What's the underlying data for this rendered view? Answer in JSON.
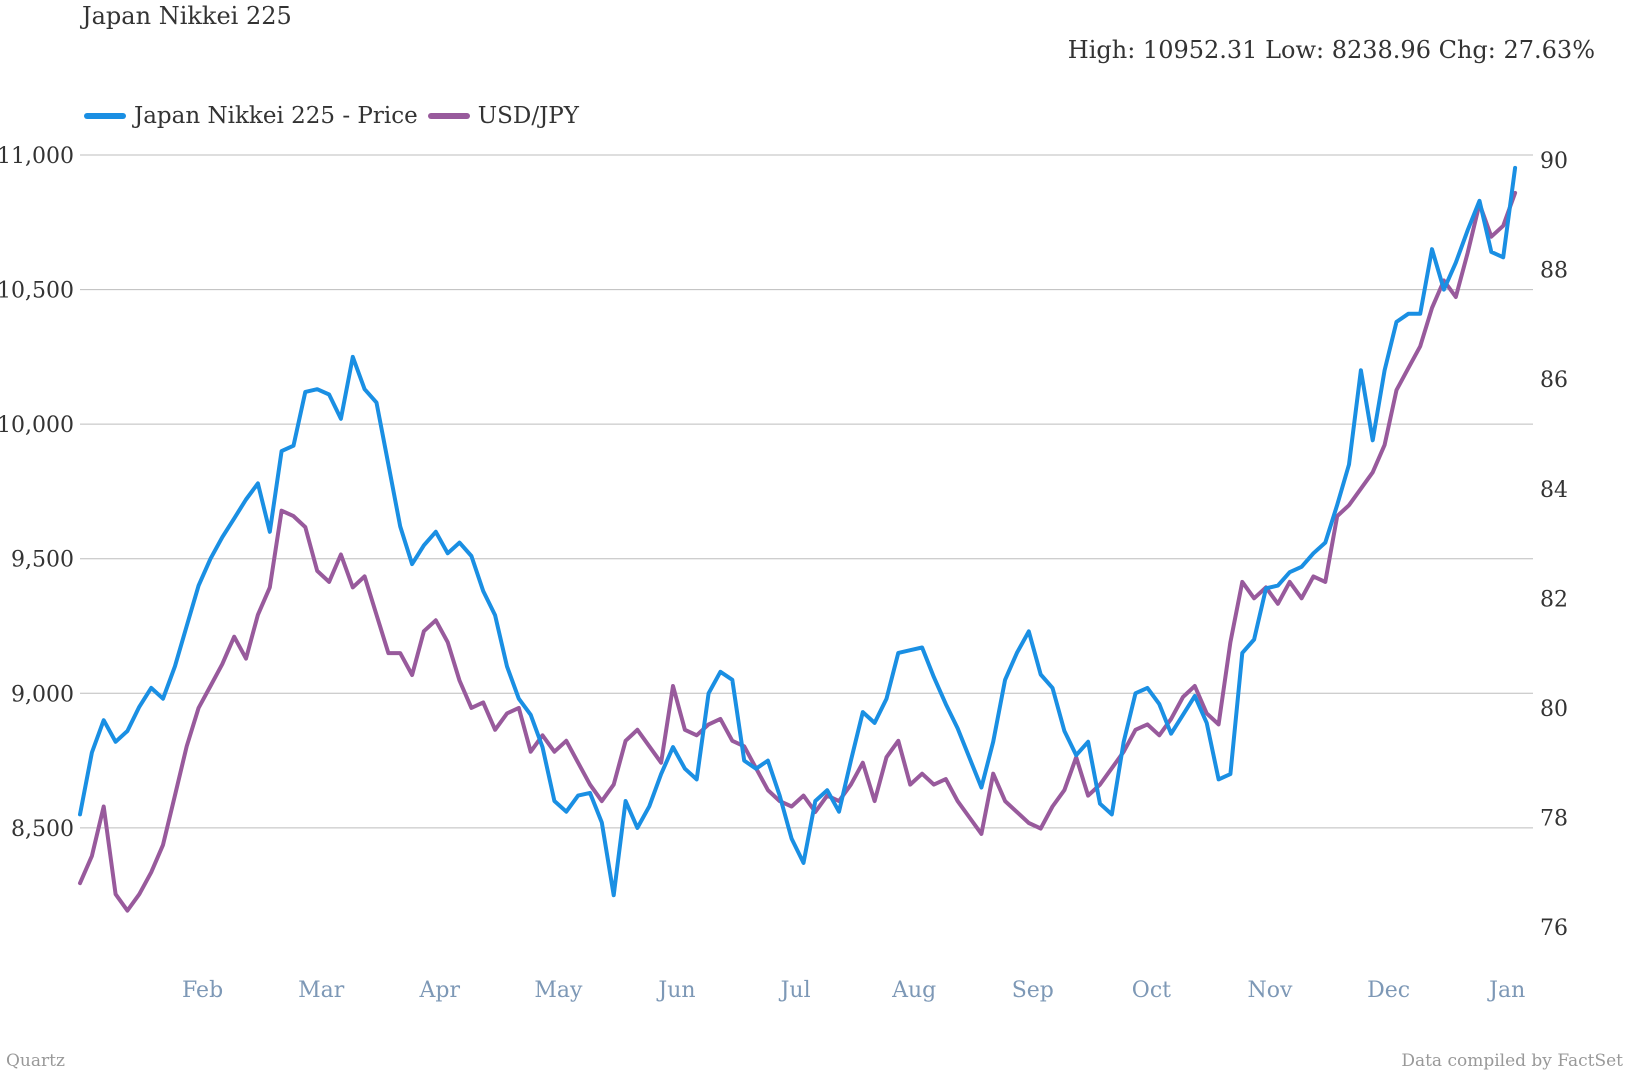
{
  "header": {
    "title": "Japan Nikkei 225",
    "stats": "High: 10952.31 Low: 8238.96 Chg: 27.63%"
  },
  "footer": {
    "source_left": "Quartz",
    "source_right": "Data compiled by FactSet"
  },
  "colors": {
    "nikkei": "#1a8fe3",
    "usdjpy": "#985a9c",
    "grid": "#bdbdbd",
    "month_label": "#7d98b6"
  },
  "chart_data": {
    "type": "line",
    "title": "Japan Nikkei 225",
    "grid": true,
    "legend_position": "top-left",
    "left_axis": {
      "ylim": [
        8050,
        11000
      ],
      "ticks": [
        8500,
        9000,
        9500,
        10000,
        10500,
        11000
      ],
      "tick_labels": [
        "8,500",
        "9,000",
        "9,500",
        "10,000",
        "10,500",
        "11,000"
      ]
    },
    "right_axis": {
      "ylim": [
        75.6,
        90
      ],
      "ticks": [
        76,
        78,
        80,
        82,
        84,
        86,
        88,
        90
      ],
      "tick_labels": [
        "76",
        "78",
        "80",
        "82",
        "84",
        "86",
        "88",
        "90"
      ]
    },
    "x_axis": {
      "tick_labels": [
        "Feb",
        "Mar",
        "Apr",
        "May",
        "Jun",
        "Jul",
        "Aug",
        "Sep",
        "Oct",
        "Nov",
        "Dec",
        "Jan"
      ],
      "tick_positions": [
        1.0,
        2.0,
        3.0,
        4.0,
        5.0,
        6.0,
        7.0,
        8.0,
        9.0,
        10.0,
        11.0,
        12.0
      ]
    },
    "series": [
      {
        "name": "Japan Nikkei 225 - Price",
        "axis": "left",
        "x": [
          0.0,
          0.1,
          0.2,
          0.3,
          0.4,
          0.5,
          0.6,
          0.7,
          0.8,
          0.9,
          1.0,
          1.1,
          1.2,
          1.3,
          1.4,
          1.5,
          1.6,
          1.7,
          1.8,
          1.9,
          2.0,
          2.1,
          2.2,
          2.3,
          2.4,
          2.5,
          2.6,
          2.7,
          2.8,
          2.9,
          3.0,
          3.1,
          3.2,
          3.3,
          3.4,
          3.5,
          3.6,
          3.7,
          3.8,
          3.9,
          4.0,
          4.1,
          4.2,
          4.3,
          4.4,
          4.5,
          4.6,
          4.7,
          4.8,
          4.9,
          5.0,
          5.1,
          5.2,
          5.3,
          5.4,
          5.5,
          5.6,
          5.7,
          5.8,
          5.9,
          6.0,
          6.1,
          6.2,
          6.3,
          6.4,
          6.5,
          6.6,
          6.7,
          6.8,
          6.9,
          7.0,
          7.1,
          7.2,
          7.3,
          7.4,
          7.5,
          7.6,
          7.7,
          7.8,
          7.9,
          8.0,
          8.1,
          8.2,
          8.3,
          8.4,
          8.5,
          8.6,
          8.7,
          8.8,
          8.9,
          9.0,
          9.1,
          9.2,
          9.3,
          9.4,
          9.5,
          9.6,
          9.7,
          9.8,
          9.9,
          10.0,
          10.1,
          10.2,
          10.3,
          10.4,
          10.5,
          10.6,
          10.7,
          10.8,
          10.9,
          11.0,
          11.1,
          11.2,
          11.3,
          11.4,
          11.5,
          11.6,
          11.7,
          11.8,
          11.9,
          12.0,
          12.1
        ],
        "values": [
          8550,
          8780,
          8900,
          8820,
          8860,
          8950,
          9020,
          8980,
          9100,
          9250,
          9400,
          9500,
          9580,
          9650,
          9720,
          9780,
          9600,
          9900,
          9920,
          10120,
          10130,
          10110,
          10020,
          10250,
          10130,
          10080,
          9850,
          9620,
          9480,
          9550,
          9600,
          9520,
          9560,
          9510,
          9380,
          9290,
          9100,
          8980,
          8920,
          8800,
          8600,
          8560,
          8620,
          8630,
          8520,
          8250,
          8600,
          8500,
          8580,
          8700,
          8800,
          8720,
          8680,
          9000,
          9080,
          9050,
          8750,
          8720,
          8750,
          8620,
          8460,
          8370,
          8600,
          8640,
          8560,
          8750,
          8930,
          8890,
          8980,
          9150,
          9160,
          9170,
          9060,
          8960,
          8870,
          8760,
          8650,
          8820,
          9050,
          9150,
          9230,
          9070,
          9020,
          8860,
          8770,
          8820,
          8590,
          8550,
          8820,
          9000,
          9020,
          8960,
          8850,
          8920,
          8990,
          8890,
          8680,
          8700,
          9150,
          9200,
          9390,
          9400,
          9450,
          9470,
          9520,
          9560,
          9700,
          9850,
          10200,
          9940,
          10200,
          10380,
          10410,
          10410,
          10650,
          10500,
          10600,
          10720,
          10830,
          10640,
          10620,
          10952
        ],
        "x_unit": "month index from start (Feb = 1, Jan = 12)"
      },
      {
        "name": "USD/JPY",
        "axis": "right",
        "x": [
          0.0,
          0.1,
          0.2,
          0.3,
          0.4,
          0.5,
          0.6,
          0.7,
          0.8,
          0.9,
          1.0,
          1.1,
          1.2,
          1.3,
          1.4,
          1.5,
          1.6,
          1.7,
          1.8,
          1.9,
          2.0,
          2.1,
          2.2,
          2.3,
          2.4,
          2.5,
          2.6,
          2.7,
          2.8,
          2.9,
          3.0,
          3.1,
          3.2,
          3.3,
          3.4,
          3.5,
          3.6,
          3.7,
          3.8,
          3.9,
          4.0,
          4.1,
          4.2,
          4.3,
          4.4,
          4.5,
          4.6,
          4.7,
          4.8,
          4.9,
          5.0,
          5.1,
          5.2,
          5.3,
          5.4,
          5.5,
          5.6,
          5.7,
          5.8,
          5.9,
          6.0,
          6.1,
          6.2,
          6.3,
          6.4,
          6.5,
          6.6,
          6.7,
          6.8,
          6.9,
          7.0,
          7.1,
          7.2,
          7.3,
          7.4,
          7.5,
          7.6,
          7.7,
          7.8,
          7.9,
          8.0,
          8.1,
          8.2,
          8.3,
          8.4,
          8.5,
          8.6,
          8.7,
          8.8,
          8.9,
          9.0,
          9.1,
          9.2,
          9.3,
          9.4,
          9.5,
          9.6,
          9.7,
          9.8,
          9.9,
          10.0,
          10.1,
          10.2,
          10.3,
          10.4,
          10.5,
          10.6,
          10.7,
          10.8,
          10.9,
          11.0,
          11.1,
          11.2,
          11.3,
          11.4,
          11.5,
          11.6,
          11.7,
          11.8,
          11.9,
          12.0,
          12.1
        ],
        "values": [
          76.8,
          77.3,
          78.2,
          76.6,
          76.3,
          76.6,
          77.0,
          77.5,
          78.4,
          79.3,
          80.0,
          80.4,
          80.8,
          81.3,
          80.9,
          81.7,
          82.2,
          83.6,
          83.5,
          83.3,
          82.5,
          82.3,
          82.8,
          82.2,
          82.4,
          81.7,
          81.0,
          81.0,
          80.6,
          81.4,
          81.6,
          81.2,
          80.5,
          80.0,
          80.1,
          79.6,
          79.9,
          80.0,
          79.2,
          79.5,
          79.2,
          79.4,
          79.0,
          78.6,
          78.3,
          78.6,
          79.4,
          79.6,
          79.3,
          79.0,
          80.4,
          79.6,
          79.5,
          79.7,
          79.8,
          79.4,
          79.3,
          78.9,
          78.5,
          78.3,
          78.2,
          78.4,
          78.1,
          78.4,
          78.3,
          78.6,
          79.0,
          78.3,
          79.1,
          79.4,
          78.6,
          78.8,
          78.6,
          78.7,
          78.3,
          78.0,
          77.7,
          78.8,
          78.3,
          78.1,
          77.9,
          77.8,
          78.2,
          78.5,
          79.1,
          78.4,
          78.6,
          78.9,
          79.2,
          79.6,
          79.7,
          79.5,
          79.8,
          80.2,
          80.4,
          79.9,
          79.7,
          81.2,
          82.3,
          82.0,
          82.2,
          81.9,
          82.3,
          82.0,
          82.4,
          82.3,
          83.5,
          83.7,
          84.0,
          84.3,
          84.8,
          85.8,
          86.2,
          86.6,
          87.3,
          87.8,
          87.5,
          88.3,
          89.2,
          88.6,
          88.8,
          89.4
        ],
        "x_unit": "month index from start (Feb = 1, Jan = 12)"
      }
    ]
  }
}
